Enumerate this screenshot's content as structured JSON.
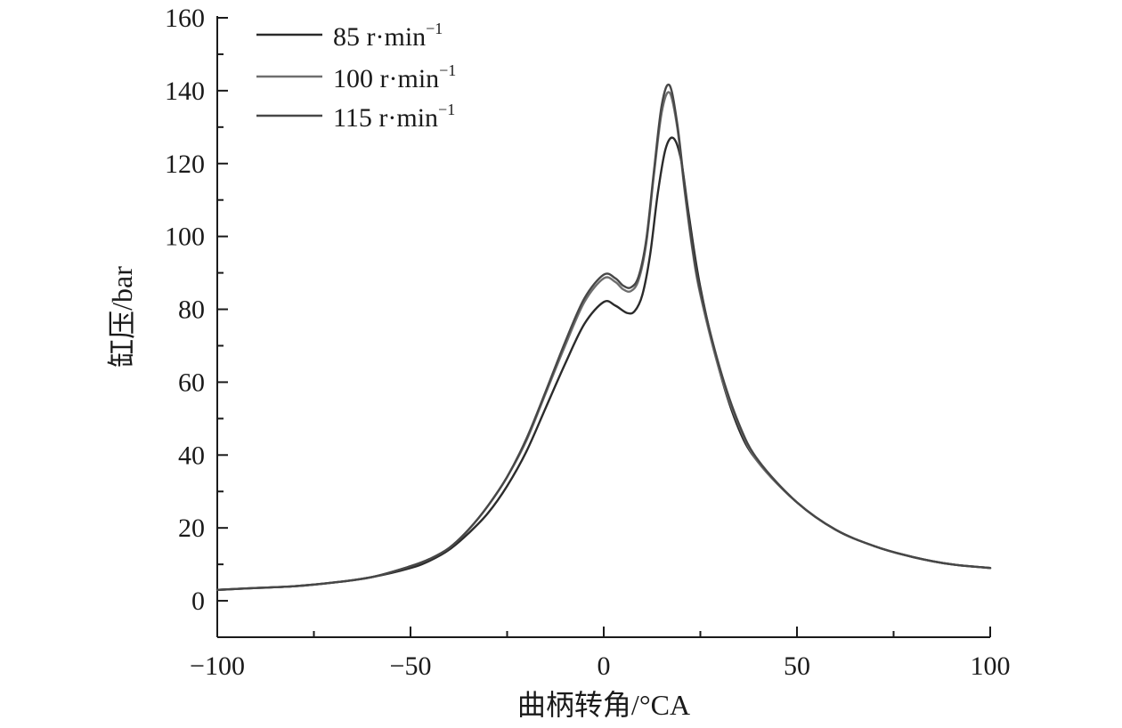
{
  "chart_data": {
    "type": "line",
    "xlabel": "曲柄转角/°CA",
    "ylabel": "缸压/bar",
    "xlim": [
      -100,
      100
    ],
    "ylim": [
      -10,
      160
    ],
    "xticks": [
      -100,
      -50,
      0,
      50,
      100
    ],
    "xtick_labels": [
      "−100",
      "−50",
      "0",
      "50",
      "100"
    ],
    "yticks": [
      0,
      20,
      40,
      60,
      80,
      100,
      120,
      140,
      160
    ],
    "ytick_labels": [
      "0",
      "20",
      "40",
      "60",
      "80",
      "100",
      "120",
      "140",
      "160"
    ],
    "grid": false,
    "legend_position": "top-left",
    "series": [
      {
        "name": "85 r·min",
        "name_sup": "−1",
        "color": "#2b2b2b",
        "x": [
          -100,
          -90,
          -80,
          -70,
          -60,
          -50,
          -45,
          -40,
          -35,
          -30,
          -25,
          -20,
          -15,
          -10,
          -5,
          0,
          3,
          6,
          8,
          10,
          12,
          14,
          16,
          18,
          20,
          22,
          25,
          30,
          35,
          40,
          50,
          60,
          70,
          80,
          90,
          100
        ],
        "y": [
          3,
          3.5,
          4,
          5,
          6.5,
          9,
          11,
          14,
          18.5,
          24,
          31.5,
          41,
          53,
          65,
          76,
          82,
          81,
          79,
          79.5,
          84,
          95,
          112,
          124,
          127,
          121,
          106,
          86,
          63,
          47,
          38,
          27,
          19.5,
          15,
          12,
          10,
          9
        ]
      },
      {
        "name": "100 r·min",
        "name_sup": "−1",
        "color": "#6e6e6e",
        "x": [
          -100,
          -90,
          -80,
          -70,
          -60,
          -50,
          -45,
          -40,
          -35,
          -30,
          -25,
          -20,
          -15,
          -10,
          -5,
          0,
          3,
          5,
          7,
          9,
          11,
          13,
          15,
          17,
          19,
          21,
          23,
          25,
          30,
          35,
          40,
          50,
          60,
          70,
          80,
          90,
          100
        ],
        "y": [
          3,
          3.5,
          4,
          5,
          6.5,
          9.5,
          11.5,
          14.5,
          19.5,
          26,
          34,
          44,
          57,
          70,
          82,
          88.5,
          87.5,
          85.5,
          85,
          88,
          98,
          117,
          134,
          139.5,
          130,
          112,
          96,
          84,
          63,
          48,
          38,
          27,
          19.5,
          15,
          12,
          10,
          9
        ]
      },
      {
        "name": "115 r·min",
        "name_sup": "−1",
        "color": "#474747",
        "x": [
          -100,
          -90,
          -80,
          -70,
          -60,
          -50,
          -45,
          -40,
          -35,
          -30,
          -25,
          -20,
          -15,
          -10,
          -5,
          0,
          3,
          5,
          7,
          9,
          11,
          13,
          15,
          17,
          19,
          21,
          23,
          25,
          30,
          35,
          40,
          50,
          60,
          70,
          80,
          90,
          100
        ],
        "y": [
          3,
          3.5,
          4,
          5,
          6.5,
          9.5,
          11.5,
          14.5,
          19.5,
          26,
          34,
          44.5,
          57.5,
          71,
          83,
          89.5,
          88.5,
          86.5,
          86,
          89,
          99,
          118,
          136,
          141.5,
          131,
          113,
          97,
          85,
          64,
          48.5,
          38.5,
          27,
          19.5,
          15,
          12,
          10,
          9
        ]
      }
    ]
  }
}
